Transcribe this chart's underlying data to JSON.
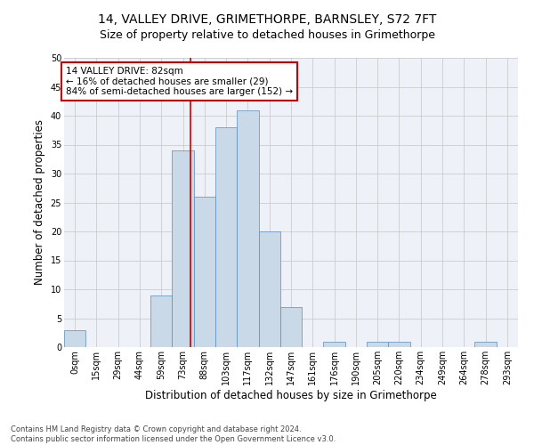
{
  "title_line1": "14, VALLEY DRIVE, GRIMETHORPE, BARNSLEY, S72 7FT",
  "title_line2": "Size of property relative to detached houses in Grimethorpe",
  "xlabel": "Distribution of detached houses by size in Grimethorpe",
  "ylabel": "Number of detached properties",
  "footnote": "Contains HM Land Registry data © Crown copyright and database right 2024.\nContains public sector information licensed under the Open Government Licence v3.0.",
  "bin_labels": [
    "0sqm",
    "15sqm",
    "29sqm",
    "44sqm",
    "59sqm",
    "73sqm",
    "88sqm",
    "103sqm",
    "117sqm",
    "132sqm",
    "147sqm",
    "161sqm",
    "176sqm",
    "190sqm",
    "205sqm",
    "220sqm",
    "234sqm",
    "249sqm",
    "264sqm",
    "278sqm",
    "293sqm"
  ],
  "bar_heights": [
    3,
    0,
    0,
    0,
    9,
    34,
    26,
    38,
    41,
    20,
    7,
    0,
    1,
    0,
    1,
    1,
    0,
    0,
    0,
    1,
    0
  ],
  "bar_color": "#c9d9e8",
  "bar_edge_color": "#5b8db8",
  "property_line_x": 5.85,
  "annotation_text": "14 VALLEY DRIVE: 82sqm\n← 16% of detached houses are smaller (29)\n84% of semi-detached houses are larger (152) →",
  "annotation_box_color": "#ffffff",
  "annotation_border_color": "#cc0000",
  "property_line_color": "#cc0000",
  "ylim": [
    0,
    50
  ],
  "yticks": [
    0,
    5,
    10,
    15,
    20,
    25,
    30,
    35,
    40,
    45,
    50
  ],
  "grid_color": "#cccccc",
  "bg_color": "#eef2f8",
  "title_fontsize": 10,
  "subtitle_fontsize": 9,
  "axis_label_fontsize": 8.5,
  "tick_fontsize": 7,
  "annotation_fontsize": 7.5,
  "footnote_fontsize": 6
}
